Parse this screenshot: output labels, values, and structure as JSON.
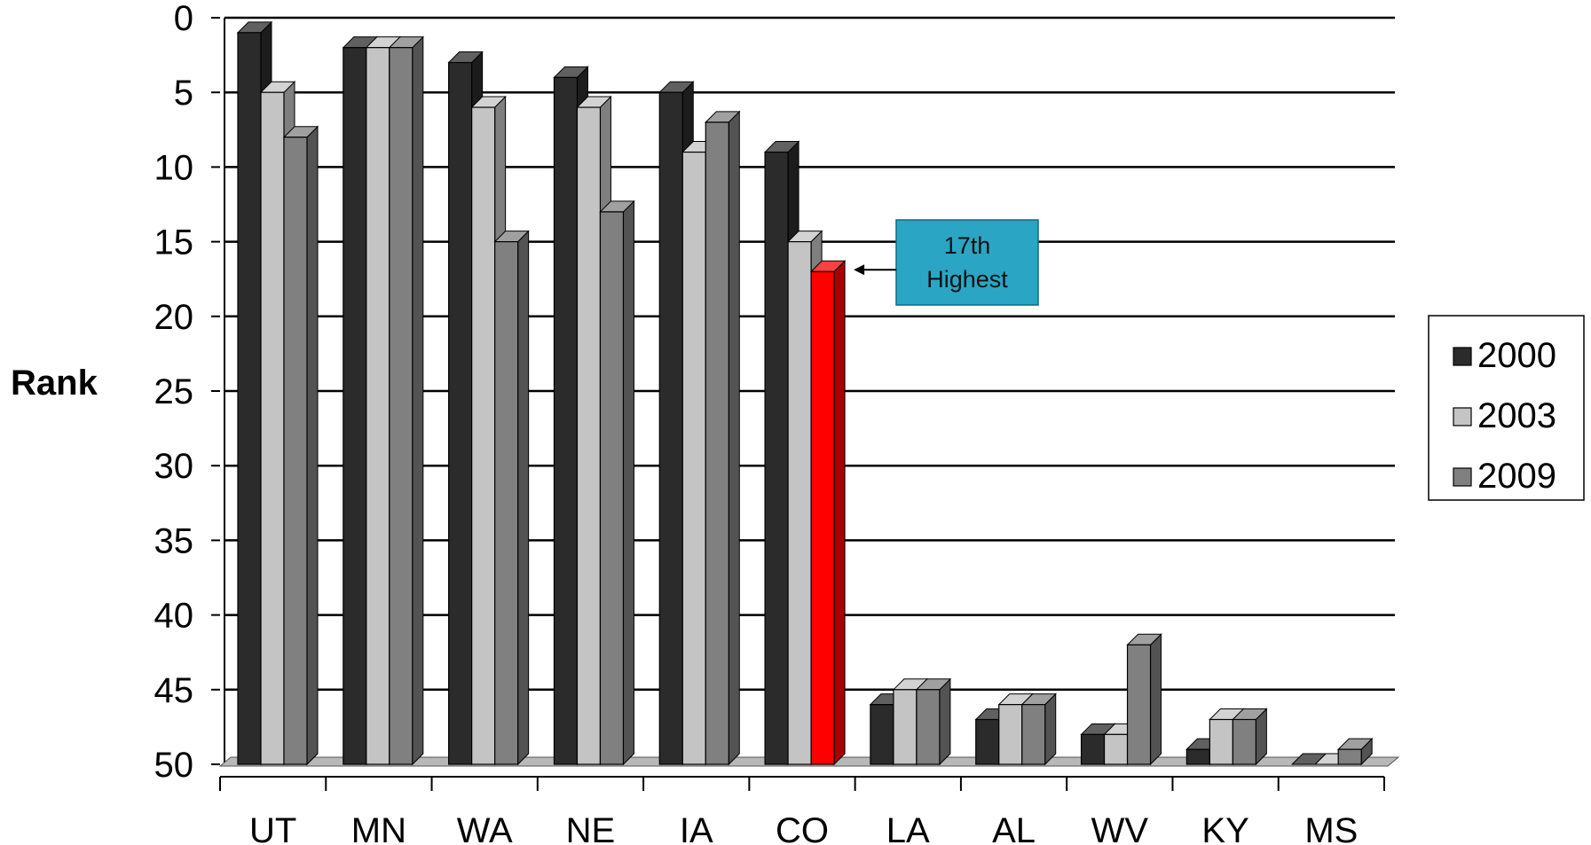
{
  "chart_data": {
    "type": "bar",
    "ylabel": "Rank",
    "y_inverted": true,
    "ylim": [
      0,
      50
    ],
    "yticks": [
      0,
      5,
      10,
      15,
      20,
      25,
      30,
      35,
      40,
      45,
      50
    ],
    "ytick_labels": [
      "0",
      "5",
      "10",
      "15",
      "20",
      "25",
      "30",
      "35",
      "40",
      "45",
      "50"
    ],
    "categories": [
      "UT",
      "MN",
      "WA",
      "NE",
      "IA",
      "CO",
      "LA",
      "AL",
      "WV",
      "KY",
      "MS"
    ],
    "series": [
      {
        "name": "2000",
        "color": "#2b2b2b",
        "values": [
          1,
          2,
          3,
          4,
          5,
          9,
          46,
          47,
          48,
          49,
          50
        ]
      },
      {
        "name": "2003",
        "color": "#c4c4c4",
        "values": [
          5,
          2,
          6,
          6,
          9,
          15,
          45,
          46,
          48,
          47,
          50
        ]
      },
      {
        "name": "2009",
        "color": "#808080",
        "values": [
          8,
          2,
          15,
          13,
          7,
          17,
          45,
          46,
          42,
          47,
          49
        ]
      }
    ],
    "highlight": {
      "category": "CO",
      "series": "2009",
      "color": "#ff0000"
    },
    "grid": true,
    "legend_position": "right",
    "annotation": {
      "line1": "17th",
      "line2": "Highest",
      "color": "#2aa6c4",
      "target_category": "CO",
      "target_series": "2009"
    }
  }
}
